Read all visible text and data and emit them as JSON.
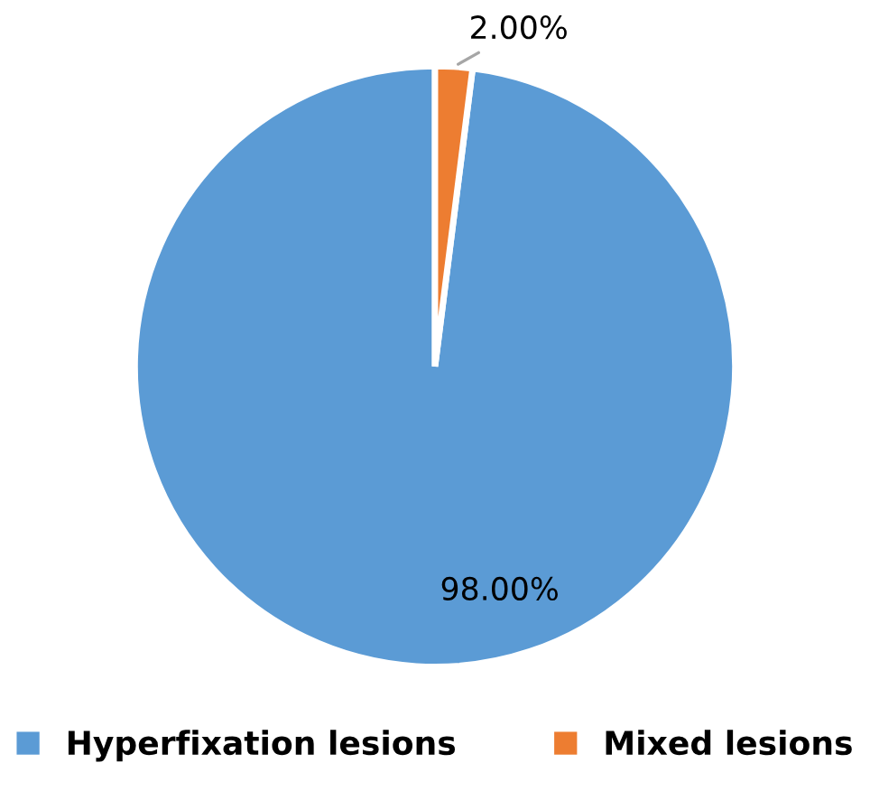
{
  "chart_data": {
    "type": "pie",
    "categories": [
      "Hyperfixation lesions",
      "Mixed lesions"
    ],
    "values": [
      98,
      2
    ],
    "colors": [
      "#5b9bd5",
      "#ed7d31"
    ],
    "value_labels": [
      "98.00%",
      "2.00%"
    ],
    "legend": "bottom"
  }
}
